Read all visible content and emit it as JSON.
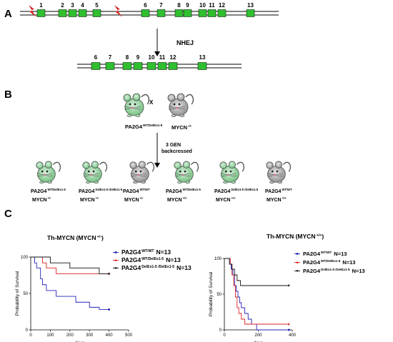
{
  "panels": {
    "a": {
      "label": "A",
      "top_exons": [
        "1",
        "2",
        "3",
        "4",
        "5",
        "6",
        "7",
        "8",
        "9",
        "10",
        "11",
        "12",
        "13"
      ],
      "arrow_label": "NHEJ",
      "bottom_exons": [
        "6",
        "7",
        "8",
        "9",
        "10",
        "11",
        "12",
        "13"
      ]
    },
    "b": {
      "label": "B",
      "cross_symbol": "X",
      "parent_left": {
        "gene": "PA2G4",
        "sup": "WT/DelEx1-5"
      },
      "parent_right": {
        "gene": "MYCN",
        "sup": "+/-"
      },
      "backcross_line1": "3 GEN",
      "backcross_line2": "backcrossed",
      "offspring": [
        {
          "pa2g4": "PA2G4",
          "pa2g4_sup": "WT/DelEx1-5",
          "mycn": "MYCN",
          "mycn_sup": "+/-"
        },
        {
          "pa2g4": "PA2G4",
          "pa2g4_sup": "DelEx1-5 /DelEx1-5",
          "mycn": "MYCN",
          "mycn_sup": "+/-"
        },
        {
          "pa2g4": "PA2G4",
          "pa2g4_sup": "WT/WT",
          "mycn": "MYCN",
          "mycn_sup": "+/-"
        },
        {
          "pa2g4": "PA2G4",
          "pa2g4_sup": "WT/DelEx1-5",
          "mycn": "MYCN",
          "mycn_sup": "+/+"
        },
        {
          "pa2g4": "PA2G4",
          "pa2g4_sup": "DelEx1-5 /DelEx1-5",
          "mycn": "MYCN",
          "mycn_sup": "+/+"
        },
        {
          "pa2g4": "PA2G4",
          "pa2g4_sup": "WT/WT",
          "mycn": "MYCN",
          "mycn_sup": "+/+"
        }
      ]
    },
    "c": {
      "label": "C"
    }
  },
  "chart_data": [
    {
      "type": "line",
      "title": "Th-MYCN (MYCN",
      "title_sup": "+/-",
      "title_close": ")",
      "xlabel": "days",
      "ylabel": "Probability of Survival",
      "xlim": [
        0,
        500
      ],
      "ylim": [
        0,
        100
      ],
      "xticks": [
        "0",
        "100",
        "200",
        "300",
        "400",
        "500"
      ],
      "yticks": [
        "0",
        "50",
        "100"
      ],
      "legend_position": "right",
      "series": [
        {
          "gene": "PA2G4",
          "sup": "WT/WT",
          "n": "N=13",
          "color": "#2222bb",
          "marker": "square",
          "x": [
            0,
            20,
            30,
            50,
            60,
            80,
            100,
            130,
            180,
            230,
            250,
            300,
            330,
            350,
            400
          ],
          "y": [
            100,
            92,
            85,
            70,
            62,
            54,
            54,
            46,
            46,
            38,
            38,
            31,
            31,
            28,
            28
          ]
        },
        {
          "gene": "PA2G4",
          "sup": "WT/DelEx1-5",
          "n": "N=13",
          "color": "#dd2222",
          "marker": "triangle",
          "x": [
            0,
            60,
            80,
            100,
            130,
            200,
            300,
            330,
            360,
            400
          ],
          "y": [
            100,
            92,
            85,
            85,
            77,
            77,
            77,
            77,
            77,
            77
          ]
        },
        {
          "gene": "PA2G4",
          "sup": "DelEx1-5 /DelEx1-5",
          "n": "N=13",
          "color": "#111111",
          "marker": "triangle-down",
          "x": [
            0,
            100,
            200,
            300,
            350,
            380,
            400
          ],
          "y": [
            100,
            92,
            85,
            85,
            77,
            77,
            77
          ]
        }
      ]
    },
    {
      "type": "line",
      "title": "Th-MYCN (MYCN",
      "title_sup": "+/+",
      "title_close": ")",
      "xlabel": "days",
      "ylabel": "Probability of Survival",
      "xlim": [
        0,
        400
      ],
      "ylim": [
        0,
        100
      ],
      "xticks": [
        "0",
        "200",
        "400"
      ],
      "yticks": [
        "0",
        "50",
        "100"
      ],
      "legend_position": "right",
      "series": [
        {
          "gene": "PA2G4",
          "sup": "WT/WT",
          "n": "N=13",
          "color": "#2222bb",
          "marker": "square",
          "x": [
            0,
            30,
            40,
            50,
            60,
            70,
            80,
            90,
            100,
            120,
            140,
            160,
            190,
            380
          ],
          "y": [
            100,
            92,
            85,
            77,
            62,
            54,
            46,
            38,
            31,
            23,
            15,
            8,
            0,
            0
          ]
        },
        {
          "gene": "PA2G4",
          "sup": "WT/DelEx1-5",
          "n": "N=13",
          "color": "#dd2222",
          "marker": "triangle",
          "x": [
            0,
            35,
            45,
            55,
            65,
            75,
            85,
            100,
            120,
            150,
            380
          ],
          "y": [
            100,
            92,
            77,
            62,
            46,
            31,
            23,
            15,
            8,
            8,
            8
          ]
        },
        {
          "gene": "PA2G4",
          "sup": "DelEx1-5 /DelEx1-5",
          "n": "N=13",
          "color": "#111111",
          "marker": "triangle-down",
          "x": [
            0,
            30,
            45,
            60,
            75,
            95,
            380
          ],
          "y": [
            100,
            92,
            85,
            77,
            69,
            62,
            62
          ]
        }
      ]
    }
  ]
}
